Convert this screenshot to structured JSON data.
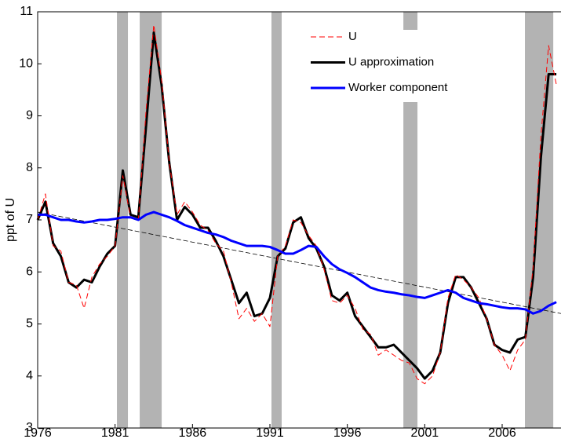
{
  "chart_data": {
    "type": "line",
    "ylabel": "ppt of U",
    "xlim": [
      1976,
      2009.8
    ],
    "xticks": [
      1976,
      1981,
      1986,
      1991,
      1996,
      2001,
      2006
    ],
    "ylim": [
      3,
      11
    ],
    "yticks": [
      3,
      4,
      5,
      6,
      7,
      8,
      9,
      10,
      11
    ],
    "legend": "upper right",
    "shade_color": "#b3b3b3",
    "shaded_periods": [
      [
        1981.12,
        1981.83
      ],
      [
        1982.59,
        1984.01
      ],
      [
        1991.1,
        1991.76
      ],
      [
        1999.62,
        2000.53
      ],
      [
        2007.47,
        2009.3
      ]
    ],
    "trend": {
      "x": [
        1976,
        2009.8
      ],
      "values": [
        7.15,
        5.2
      ],
      "color": "#000000"
    },
    "x": [
      1976,
      1976.5,
      1977,
      1977.5,
      1978,
      1978.5,
      1979,
      1979.5,
      1980,
      1980.5,
      1981,
      1981.5,
      1982,
      1982.5,
      1983,
      1983.5,
      1984,
      1984.5,
      1985,
      1985.5,
      1986,
      1986.5,
      1987,
      1987.5,
      1988,
      1988.5,
      1989,
      1989.5,
      1990,
      1990.5,
      1991,
      1991.5,
      1992,
      1992.5,
      1993,
      1993.5,
      1994,
      1994.5,
      1995,
      1995.5,
      1996,
      1996.5,
      1997,
      1997.5,
      1998,
      1998.5,
      1999,
      1999.5,
      2000,
      2000.5,
      2001,
      2001.5,
      2002,
      2002.5,
      2003,
      2003.5,
      2004,
      2004.5,
      2005,
      2005.5,
      2006,
      2006.5,
      2007,
      2007.5,
      2008,
      2008.5,
      2009,
      2009.5
    ],
    "series": [
      {
        "name": "U approximation",
        "color": "#000000",
        "linestyle": "solid",
        "width": 3,
        "values": [
          7.0,
          7.35,
          6.55,
          6.3,
          5.8,
          5.7,
          5.85,
          5.8,
          6.1,
          6.35,
          6.5,
          7.95,
          7.1,
          7.05,
          8.8,
          10.6,
          9.6,
          8.1,
          7.0,
          7.25,
          7.1,
          6.85,
          6.85,
          6.6,
          6.3,
          5.85,
          5.4,
          5.6,
          5.15,
          5.2,
          5.5,
          6.3,
          6.45,
          6.95,
          7.05,
          6.65,
          6.45,
          6.1,
          5.55,
          5.45,
          5.6,
          5.15,
          4.95,
          4.75,
          4.55,
          4.55,
          4.6,
          4.45,
          4.3,
          4.15,
          3.95,
          4.1,
          4.45,
          5.4,
          5.9,
          5.9,
          5.7,
          5.4,
          5.1,
          4.6,
          4.5,
          4.45,
          4.7,
          4.75,
          5.9,
          8.2,
          9.8,
          9.8
        ]
      },
      {
        "name": "U",
        "color": "#ff0000",
        "linestyle": "dashed",
        "width": 1,
        "values": [
          7.0,
          7.5,
          6.5,
          6.4,
          5.8,
          5.75,
          5.3,
          5.9,
          6.15,
          6.3,
          6.5,
          7.85,
          7.05,
          7.0,
          9.1,
          10.75,
          9.7,
          8.1,
          7.1,
          7.35,
          7.15,
          6.9,
          6.8,
          6.55,
          6.4,
          5.8,
          5.1,
          5.3,
          5.05,
          5.2,
          4.95,
          6.3,
          6.5,
          7.0,
          6.95,
          6.7,
          6.5,
          6.05,
          5.45,
          5.4,
          5.55,
          5.3,
          4.9,
          4.8,
          4.4,
          4.5,
          4.4,
          4.3,
          4.25,
          3.95,
          3.85,
          4.0,
          4.45,
          5.5,
          5.95,
          5.85,
          5.7,
          5.5,
          5.1,
          4.6,
          4.4,
          4.1,
          4.5,
          4.7,
          6.1,
          8.6,
          10.35,
          9.6
        ]
      },
      {
        "name": "Worker component",
        "color": "#0000ff",
        "linestyle": "solid",
        "width": 3,
        "values": [
          7.1,
          7.1,
          7.05,
          7.0,
          7.0,
          6.97,
          6.95,
          6.97,
          7.0,
          7.0,
          7.02,
          7.05,
          7.05,
          7.0,
          7.1,
          7.15,
          7.1,
          7.05,
          6.98,
          6.9,
          6.85,
          6.8,
          6.75,
          6.72,
          6.67,
          6.6,
          6.55,
          6.5,
          6.5,
          6.5,
          6.48,
          6.42,
          6.35,
          6.35,
          6.42,
          6.5,
          6.48,
          6.3,
          6.15,
          6.05,
          5.98,
          5.9,
          5.8,
          5.7,
          5.65,
          5.62,
          5.6,
          5.57,
          5.55,
          5.52,
          5.5,
          5.55,
          5.6,
          5.65,
          5.6,
          5.5,
          5.45,
          5.4,
          5.38,
          5.35,
          5.32,
          5.3,
          5.3,
          5.28,
          5.2,
          5.25,
          5.35,
          5.42
        ]
      }
    ],
    "legend_order": [
      1,
      0,
      2
    ]
  }
}
